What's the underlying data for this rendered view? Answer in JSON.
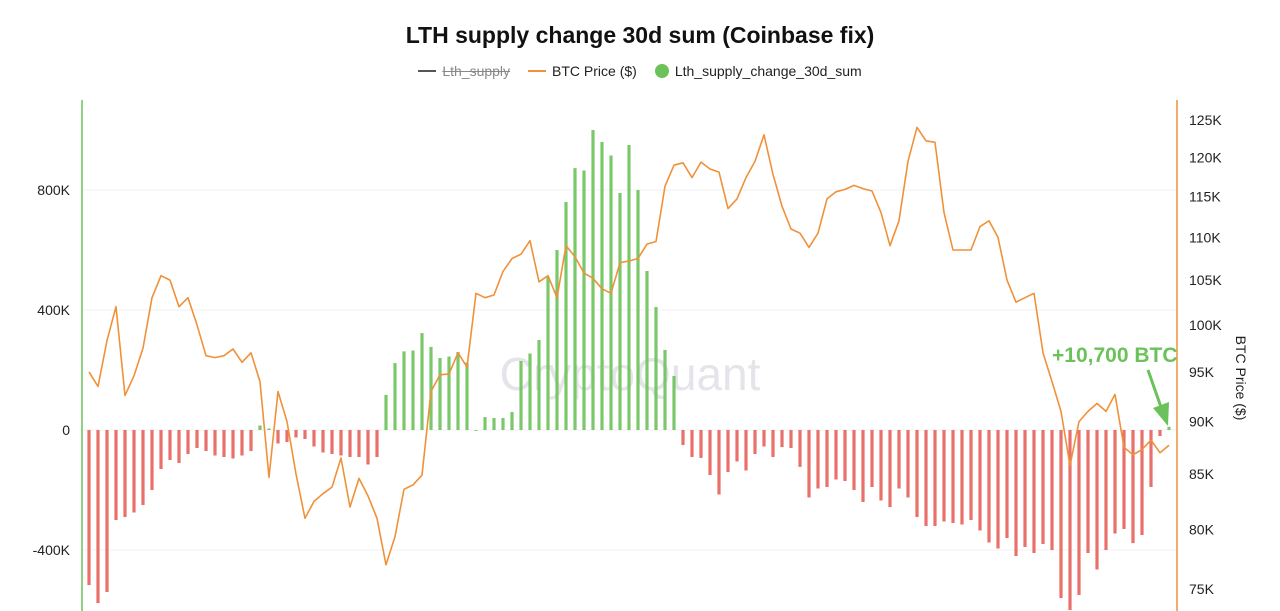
{
  "chart_data": {
    "type": "bar+line",
    "title": "LTH supply change 30d sum (Coinbase fix)",
    "legend": [
      {
        "name": "Lth_supply",
        "color": "#555555",
        "marker": "line",
        "hidden": true
      },
      {
        "name": "BTC Price ($)",
        "color": "#f0913a",
        "marker": "line",
        "hidden": false
      },
      {
        "name": "Lth_supply_change_30d_sum",
        "color": "#6cc25a",
        "marker": "dot",
        "hidden": false
      }
    ],
    "legend_position": "top",
    "left_axis": {
      "ticks": [
        -400000,
        0,
        400000,
        800000
      ],
      "tick_labels": [
        "-400K",
        "0",
        "400K",
        "800K"
      ],
      "range": [
        -600000,
        1100000
      ],
      "color": "#6cc25a"
    },
    "right_axis": {
      "label": "BTC Price ($)",
      "scale": "log",
      "ticks": [
        75000,
        80000,
        85000,
        90000,
        95000,
        100000,
        105000,
        110000,
        115000,
        120000,
        125000
      ],
      "tick_labels": [
        "75K",
        "80K",
        "85K",
        "90K",
        "95K",
        "100K",
        "105K",
        "110K",
        "115K",
        "120K",
        "125K"
      ],
      "range": [
        74500,
        130000
      ],
      "color": "#f0913a"
    },
    "grid": true,
    "positive_color": "#6cc25a",
    "negative_color": "#e8605c",
    "watermark": "CryptoQuant",
    "annotation": {
      "text": "+10,700 BTC",
      "color": "#6cc25a",
      "points_to": "last bar"
    },
    "series": [
      {
        "name": "Lth_supply_change_30d_sum",
        "kind": "bar",
        "values": [
          -517000,
          -577000,
          -540000,
          -300000,
          -290000,
          -275000,
          -250000,
          -200000,
          -130000,
          -100000,
          -110000,
          -80000,
          -60000,
          -70000,
          -85000,
          -90000,
          -95000,
          -85000,
          -70000,
          15000,
          5000,
          -45000,
          -40000,
          -25000,
          -30000,
          -55000,
          -75000,
          -80000,
          -85000,
          -90000,
          -90000,
          -115000,
          -90000,
          117000,
          223000,
          262000,
          265000,
          323000,
          277000,
          240000,
          245000,
          260000,
          225000,
          0,
          43000,
          40000,
          40000,
          60000,
          230000,
          255000,
          300000,
          510000,
          600000,
          760000,
          873000,
          865000,
          1000000,
          960000,
          915000,
          790000,
          950000,
          800000,
          530000,
          410000,
          267000,
          180000,
          -50000,
          -90000,
          -93000,
          -150000,
          -215000,
          -140000,
          -105000,
          -135000,
          -80000,
          -55000,
          -90000,
          -57000,
          -60000,
          -123000,
          -225000,
          -195000,
          -190000,
          -165000,
          -170000,
          -200000,
          -240000,
          -190000,
          -235000,
          -257000,
          -195000,
          -225000,
          -290000,
          -320000,
          -320000,
          -305000,
          -310000,
          -315000,
          -300000,
          -335000,
          -375000,
          -395000,
          -360000,
          -420000,
          -390000,
          -410000,
          -380000,
          -400000,
          -560000,
          -600000,
          -550000,
          -410000,
          -465000,
          -400000,
          -345000,
          -330000,
          -377000,
          -350000,
          -190000,
          -20000,
          10700
        ]
      },
      {
        "name": "BTC Price ($)",
        "kind": "line",
        "values": [
          95000,
          93500,
          98300,
          102000,
          92600,
          94600,
          97500,
          103000,
          105500,
          105000,
          102000,
          103000,
          100000,
          96700,
          96500,
          96700,
          97400,
          96000,
          97000,
          94000,
          84700,
          93000,
          90000,
          85000,
          81000,
          82500,
          83200,
          83800,
          86500,
          82000,
          84600,
          83000,
          81000,
          77000,
          79400,
          83600,
          84000,
          84900,
          93000,
          94700,
          94800,
          97000,
          95500,
          103500,
          103000,
          103300,
          106000,
          107500,
          108000,
          109600,
          104800,
          105500,
          103000,
          109000,
          107700,
          105800,
          105200,
          104000,
          103500,
          107000,
          107200,
          107500,
          109200,
          109500,
          116300,
          119000,
          119300,
          117400,
          119400,
          118500,
          118100,
          113500,
          114700,
          117400,
          119500,
          123000,
          117800,
          113800,
          111000,
          110500,
          108800,
          110500,
          114700,
          115600,
          115900,
          116400,
          116000,
          115700,
          113000,
          109000,
          112000,
          119500,
          124000,
          122200,
          122000,
          113000,
          108500,
          108500,
          108500,
          111300,
          112000,
          110000,
          105000,
          102500,
          103000,
          103500,
          97000,
          94000,
          91000,
          85800,
          90000,
          91000,
          91800,
          91000,
          92700,
          87500,
          86800,
          87300,
          88200,
          87000,
          87700
        ]
      }
    ]
  }
}
